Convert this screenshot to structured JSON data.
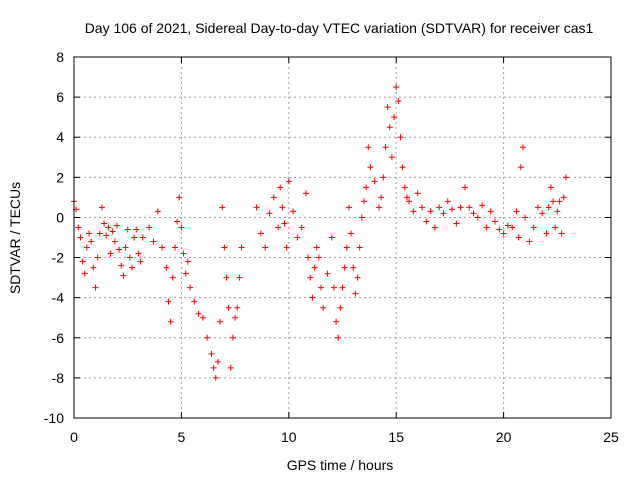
{
  "chart_data": {
    "type": "scatter",
    "title": "Day 106 of 2021, Sidereal Day-to-day VTEC variation (SDTVAR) for receiver cas1",
    "xlabel": "GPS time / hours",
    "ylabel": "SDTVAR / TECUs",
    "xlim": [
      0,
      25
    ],
    "ylim": [
      -10,
      8
    ],
    "xticks": [
      0,
      5,
      10,
      15,
      20,
      25
    ],
    "yticks": [
      -10,
      -8,
      -6,
      -4,
      -2,
      0,
      2,
      4,
      6,
      8
    ],
    "xtick_labels": [
      "0",
      "5",
      "10",
      "15",
      "20",
      "25"
    ],
    "ytick_labels": [
      "-10",
      "-8",
      "-6",
      "-4",
      "-2",
      "0",
      "2",
      "4",
      "6",
      "8"
    ],
    "grid": true,
    "marker": "+",
    "color": "#ff0000",
    "series": [
      {
        "name": "cas1",
        "x": [
          0.0,
          0.1,
          0.2,
          0.3,
          0.4,
          0.5,
          0.6,
          0.7,
          0.8,
          0.9,
          1.0,
          1.1,
          1.2,
          1.3,
          1.4,
          1.5,
          1.6,
          1.7,
          1.8,
          1.9,
          2.0,
          2.1,
          2.2,
          2.3,
          2.4,
          2.5,
          2.6,
          2.7,
          2.8,
          2.9,
          3.0,
          3.1,
          3.2,
          3.5,
          3.7,
          3.9,
          4.1,
          4.3,
          4.4,
          4.5,
          4.6,
          4.7,
          4.8,
          4.9,
          5.0,
          5.1,
          5.2,
          5.3,
          5.4,
          5.6,
          5.8,
          6.0,
          6.2,
          6.4,
          6.5,
          6.6,
          6.7,
          6.8,
          6.9,
          7.0,
          7.1,
          7.2,
          7.3,
          7.4,
          7.5,
          7.6,
          7.7,
          7.8,
          8.5,
          8.7,
          8.9,
          9.1,
          9.3,
          9.5,
          9.6,
          9.7,
          9.8,
          9.9,
          10.0,
          10.2,
          10.4,
          10.6,
          10.8,
          10.9,
          11.0,
          11.1,
          11.2,
          11.3,
          11.4,
          11.5,
          11.6,
          11.8,
          12.0,
          12.1,
          12.2,
          12.3,
          12.4,
          12.5,
          12.6,
          12.7,
          12.8,
          12.9,
          13.0,
          13.1,
          13.2,
          13.3,
          13.4,
          13.5,
          13.6,
          13.7,
          13.8,
          14.0,
          14.2,
          14.3,
          14.4,
          14.5,
          14.6,
          14.7,
          14.8,
          14.9,
          15.0,
          15.1,
          15.2,
          15.3,
          15.4,
          15.5,
          15.6,
          15.8,
          16.0,
          16.2,
          16.4,
          16.6,
          16.8,
          17.0,
          17.2,
          17.4,
          17.6,
          17.8,
          18.0,
          18.2,
          18.4,
          18.6,
          18.8,
          19.0,
          19.2,
          19.4,
          19.6,
          19.8,
          20.0,
          20.2,
          20.4,
          20.6,
          20.7,
          20.8,
          20.9,
          21.0,
          21.2,
          21.4,
          21.6,
          21.8,
          22.0,
          22.1,
          22.2,
          22.3,
          22.4,
          22.5,
          22.6,
          22.7,
          22.8,
          22.9
        ],
        "y": [
          0.8,
          0.4,
          -0.5,
          -1.0,
          -2.2,
          -2.8,
          -1.5,
          -0.8,
          -1.2,
          -2.5,
          -3.5,
          -2.0,
          -0.8,
          0.5,
          -0.3,
          -0.9,
          -0.5,
          -1.8,
          -0.7,
          -1.2,
          -0.4,
          -1.6,
          -2.4,
          -2.9,
          -1.5,
          -0.6,
          -2.0,
          -2.5,
          -1.0,
          -0.6,
          -1.8,
          -2.2,
          -1.0,
          -0.5,
          -1.2,
          0.3,
          -1.5,
          -2.5,
          -4.2,
          -5.2,
          -3.0,
          -1.5,
          -0.2,
          1.0,
          -0.5,
          -1.8,
          -2.8,
          -2.2,
          -3.5,
          -4.2,
          -4.8,
          -5.0,
          -6.0,
          -6.8,
          -7.5,
          -8.0,
          -7.2,
          -5.2,
          0.5,
          -1.5,
          -3.0,
          -4.5,
          -7.5,
          -6.0,
          -5.0,
          -4.5,
          -3.0,
          -1.5,
          0.5,
          -0.8,
          -1.5,
          0.2,
          1.0,
          -0.5,
          1.5,
          0.5,
          -0.3,
          -1.5,
          1.8,
          0.3,
          -1.0,
          -0.5,
          1.2,
          -2.0,
          -3.0,
          -4.0,
          -2.5,
          -1.5,
          -2.0,
          -3.5,
          -4.5,
          -2.8,
          -1.0,
          -3.5,
          -5.2,
          -6.0,
          -4.5,
          -3.5,
          -2.5,
          -1.5,
          0.5,
          -0.8,
          -2.5,
          -3.8,
          -3.0,
          -1.5,
          0.0,
          0.8,
          1.5,
          3.5,
          2.5,
          1.8,
          0.5,
          1.0,
          2.0,
          3.5,
          5.5,
          4.5,
          3.0,
          5.0,
          6.5,
          5.8,
          4.0,
          2.5,
          1.5,
          1.0,
          0.8,
          0.3,
          1.2,
          0.5,
          -0.2,
          0.3,
          -0.5,
          0.5,
          0.2,
          0.8,
          0.4,
          -0.3,
          0.5,
          1.5,
          0.5,
          0.2,
          0.0,
          0.6,
          -0.5,
          0.3,
          -0.2,
          -0.6,
          -0.8,
          -0.4,
          -0.5,
          0.3,
          -1.0,
          2.5,
          3.5,
          0.0,
          -1.2,
          -0.5,
          0.5,
          0.2,
          -0.8,
          0.5,
          1.5,
          0.8,
          -0.5,
          0.3,
          0.8,
          -0.8,
          1.0,
          2.0
        ]
      }
    ]
  }
}
